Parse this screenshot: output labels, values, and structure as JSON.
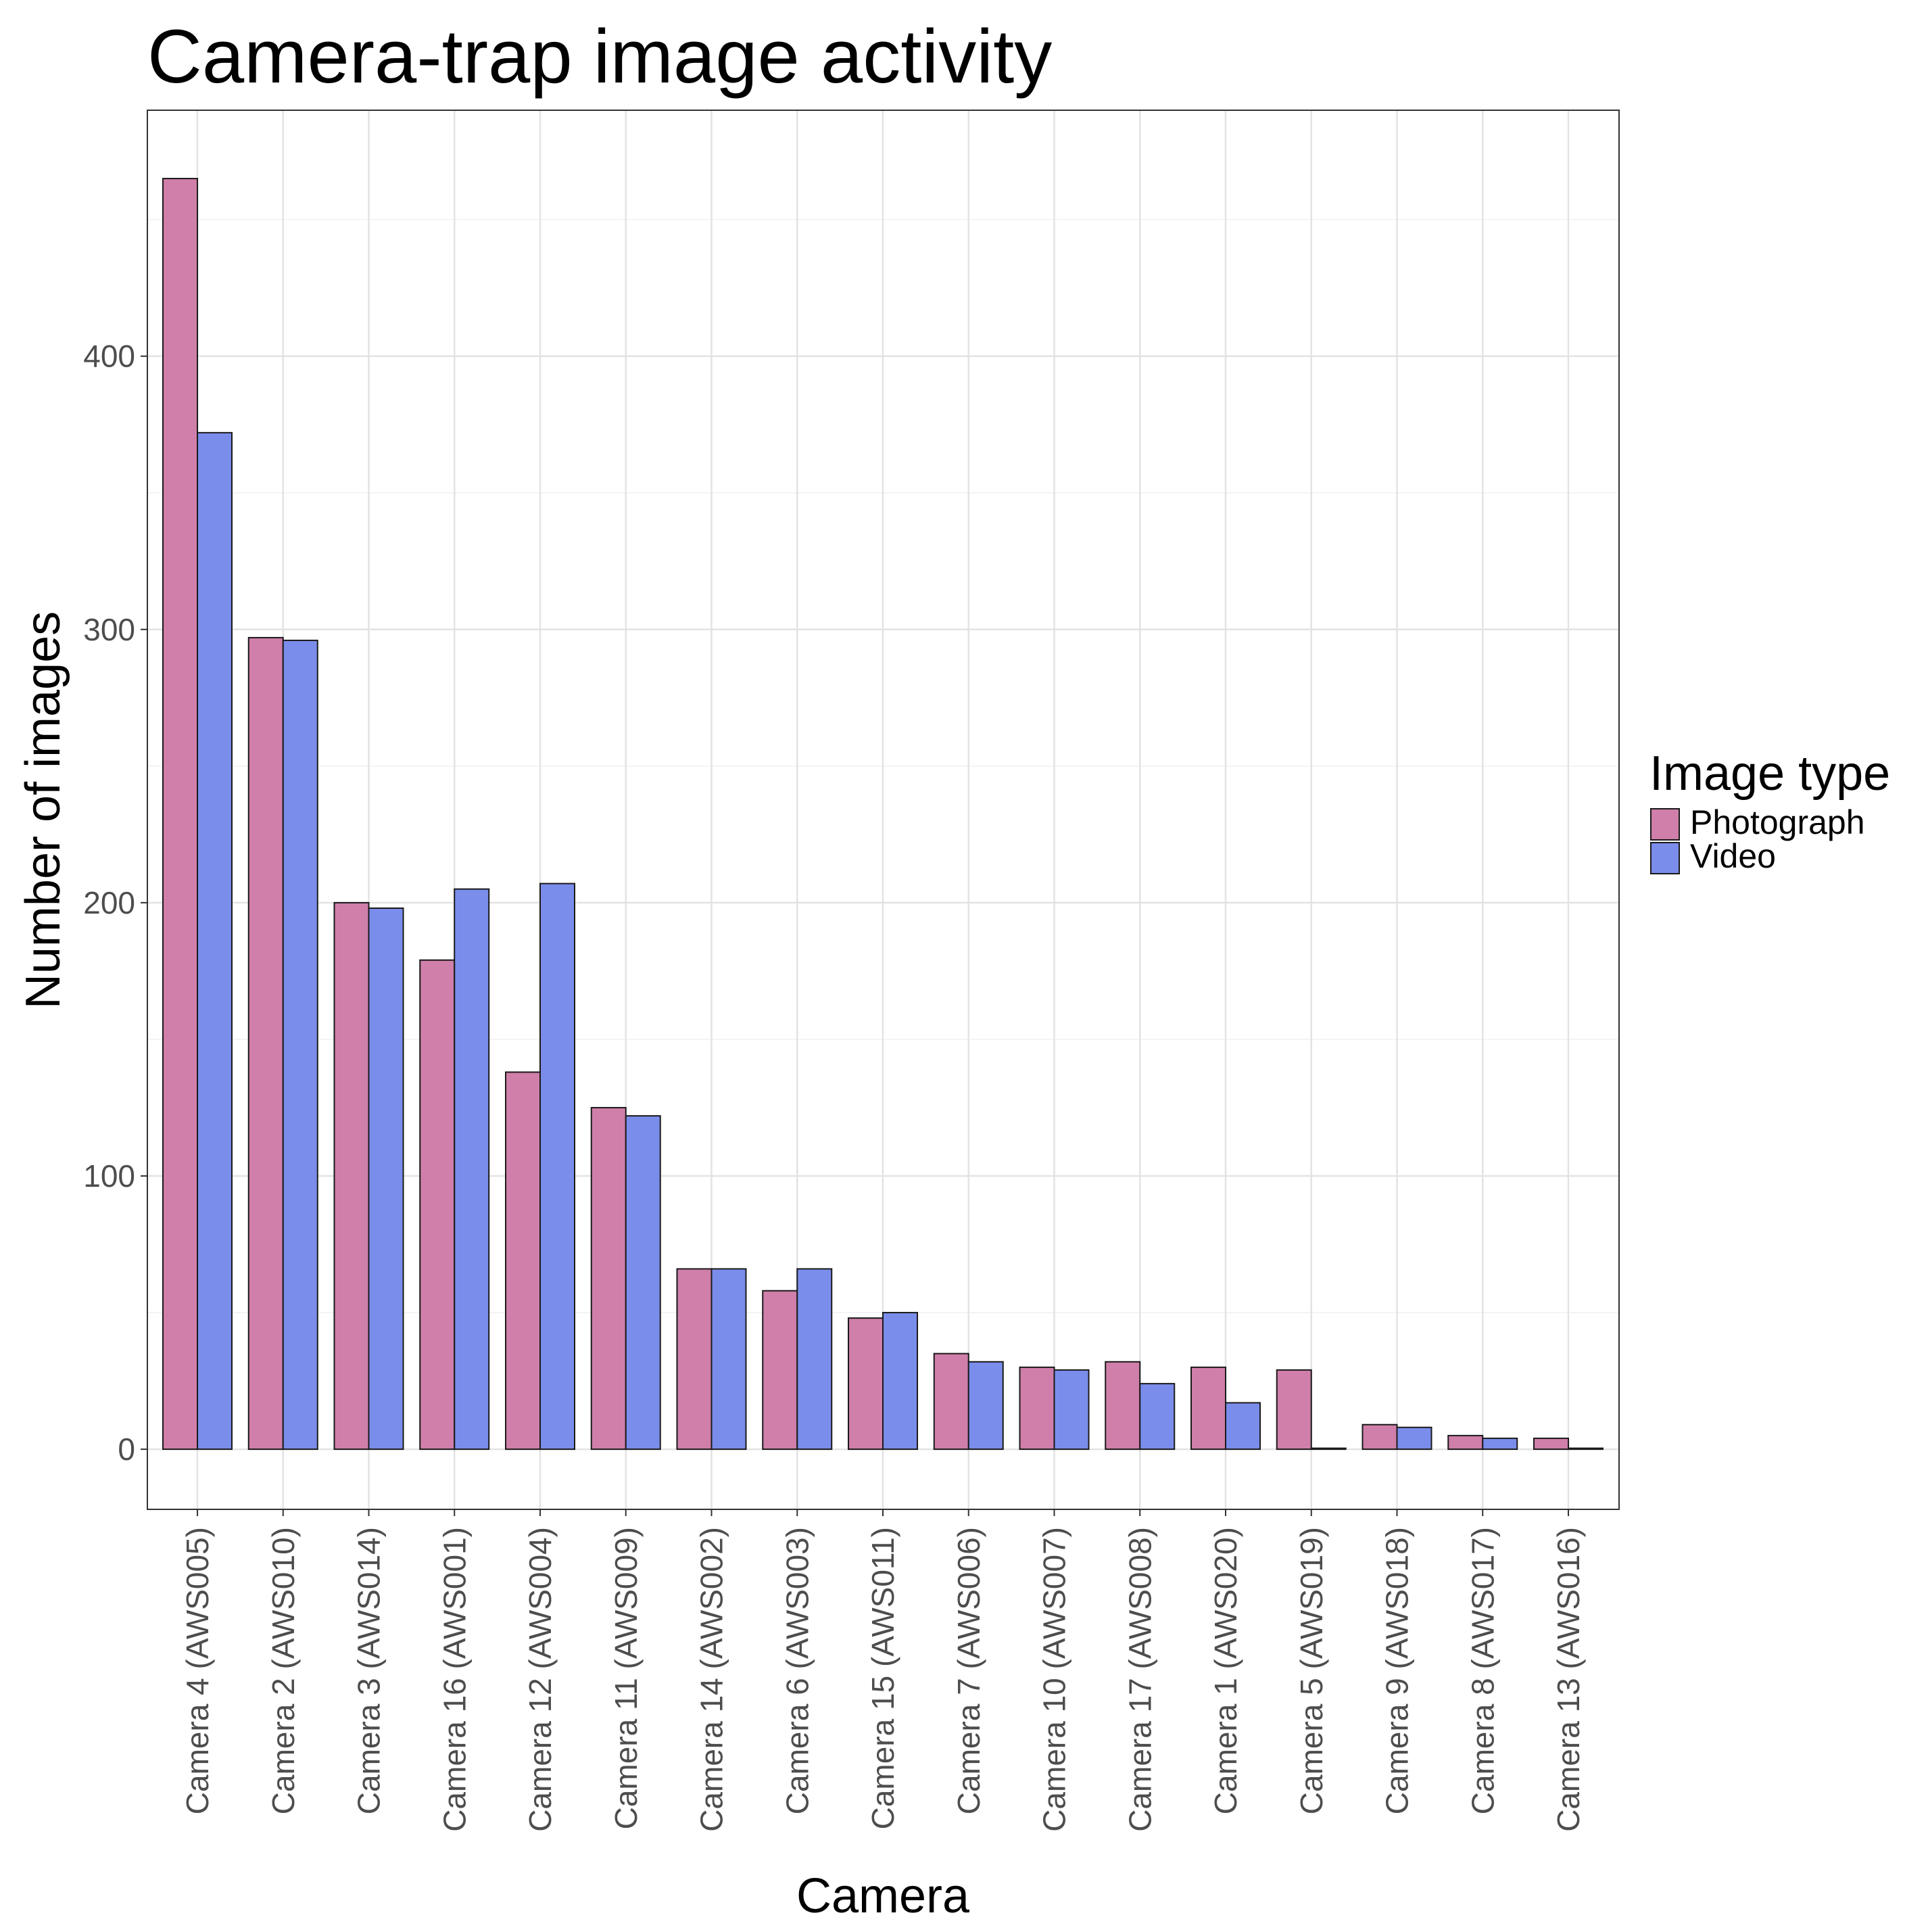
{
  "chart_data": {
    "type": "bar",
    "title": "Camera-trap image activity",
    "xlabel": "Camera",
    "ylabel": "Number of images",
    "ylim": [
      -22,
      490
    ],
    "yticks": [
      0,
      100,
      200,
      300,
      400
    ],
    "grid": true,
    "legend": {
      "title": "Image type",
      "position": "right"
    },
    "categories": [
      "Camera 4 (AWS005)",
      "Camera 2 (AWS010)",
      "Camera 3 (AWS014)",
      "Camera 16 (AWS001)",
      "Camera 12 (AWS004)",
      "Camera 11 (AWS009)",
      "Camera 14 (AWS002)",
      "Camera 6 (AWS003)",
      "Camera 15 (AWS011)",
      "Camera 7 (AWS006)",
      "Camera 10 (AWS007)",
      "Camera 17 (AWS008)",
      "Camera 1 (AWS020)",
      "Camera 5 (AWS019)",
      "Camera 9 (AWS018)",
      "Camera 8 (AWS017)",
      "Camera 13 (AWS016)"
    ],
    "series": [
      {
        "name": "Photograph",
        "color": "#cf7fa9",
        "values": [
          465,
          297,
          200,
          179,
          138,
          125,
          66,
          58,
          48,
          35,
          30,
          32,
          30,
          29,
          9,
          5,
          4
        ]
      },
      {
        "name": "Video",
        "color": "#7b8deb",
        "values": [
          372,
          296,
          198,
          205,
          207,
          122,
          66,
          66,
          50,
          32,
          29,
          24,
          17,
          0,
          8,
          4,
          0
        ]
      }
    ]
  }
}
